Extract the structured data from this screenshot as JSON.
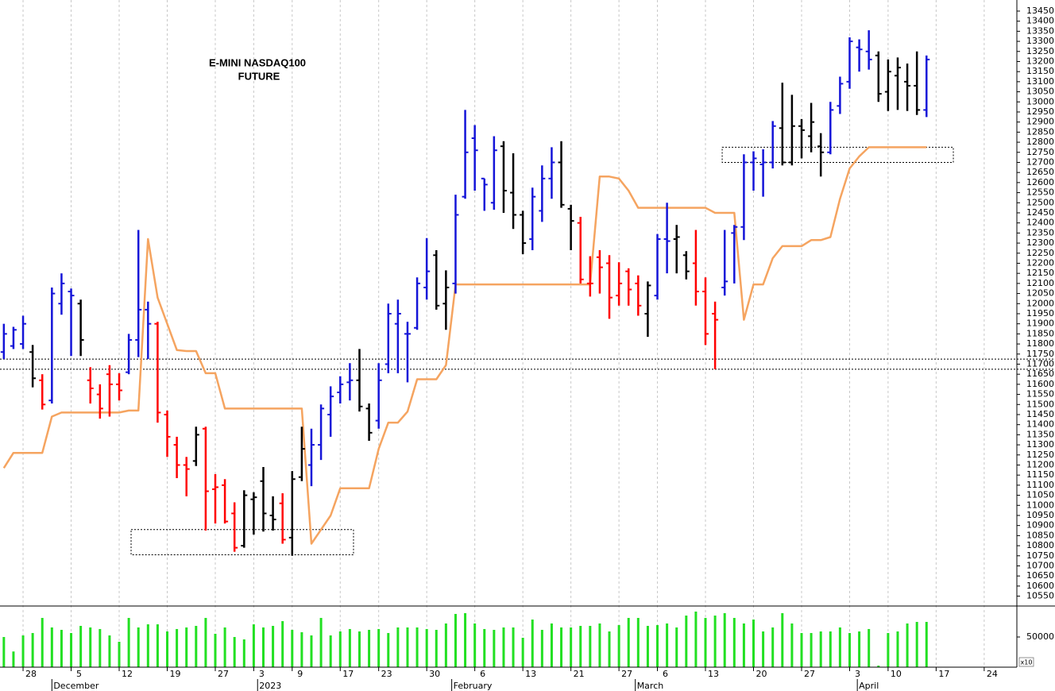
{
  "chart_data": [
    {
      "type": "ohlc",
      "title_lines": [
        "E-MINI NASDAQ100",
        "FUTURE"
      ],
      "xlim": [
        -0.4,
        105.4
      ],
      "ylim": [
        10505,
        13505
      ],
      "yticks": [
        10550,
        10600,
        10650,
        10700,
        10750,
        10800,
        10850,
        10900,
        10950,
        11000,
        11050,
        11100,
        11150,
        11200,
        11250,
        11300,
        11350,
        11400,
        11450,
        11500,
        11550,
        11600,
        11650,
        11700,
        11750,
        11800,
        11850,
        11900,
        11950,
        12000,
        12050,
        12100,
        12150,
        12200,
        12250,
        12300,
        12350,
        12400,
        12450,
        12500,
        12550,
        12600,
        12650,
        12700,
        12750,
        12800,
        12850,
        12900,
        12950,
        13000,
        13050,
        13100,
        13150,
        13200,
        13250,
        13300,
        13350,
        13400,
        13450
      ],
      "open": [
        11760,
        11790,
        11800,
        11760,
        11620,
        11520,
        12000,
        12060,
        12000,
        11620,
        11550,
        11650,
        11600,
        11660,
        11820,
        11970,
        11900,
        11450,
        11300,
        11200,
        11220,
        11380,
        11080,
        11100,
        10960,
        10800,
        11030,
        11120,
        10950,
        11010,
        10840,
        11140,
        11200,
        11300,
        11450,
        11560,
        11610,
        11620,
        11480,
        11420,
        11700,
        11900,
        11850,
        11880,
        12080,
        12240,
        12000,
        12100,
        12530,
        12820,
        12620,
        12500,
        12780,
        12550,
        12440,
        12320,
        12460,
        12620,
        12700,
        12470,
        12400,
        12100,
        12230,
        12200,
        12040,
        12160,
        12100,
        11950,
        12040,
        12320,
        12320,
        12240,
        12200,
        12060,
        11950,
        12080,
        12350,
        12380,
        12700,
        12690,
        12700,
        12870,
        12700,
        12880,
        12830,
        12780,
        12750,
        12980,
        13100,
        13270,
        13250,
        13230,
        13050,
        13130,
        13100,
        13080,
        12960
      ],
      "high": [
        11900,
        11885,
        11940,
        11795,
        11650,
        12080,
        12150,
        12075,
        12020,
        11685,
        11600,
        11695,
        11655,
        11850,
        12365,
        12010,
        11910,
        11470,
        11340,
        11240,
        11390,
        11390,
        11155,
        11130,
        11015,
        11075,
        11065,
        11190,
        11045,
        11060,
        11170,
        11390,
        11380,
        11500,
        11590,
        11640,
        11705,
        11775,
        11505,
        11705,
        12000,
        12020,
        11910,
        12130,
        12325,
        12265,
        12165,
        12540,
        12960,
        12885,
        12620,
        12830,
        12805,
        12745,
        12460,
        12575,
        12685,
        12775,
        12805,
        12490,
        12430,
        12235,
        12265,
        12240,
        12205,
        12175,
        12140,
        12110,
        12345,
        12500,
        12390,
        12260,
        12365,
        12130,
        12010,
        12365,
        12390,
        12740,
        12755,
        12765,
        12905,
        13095,
        13035,
        12915,
        12995,
        12845,
        13000,
        13125,
        13320,
        13310,
        13355,
        13250,
        13210,
        13220,
        13190,
        13250,
        13230
      ],
      "low": [
        11725,
        11775,
        11775,
        11585,
        11475,
        11505,
        11945,
        11740,
        11740,
        11505,
        11430,
        11440,
        11520,
        11650,
        11735,
        11725,
        11410,
        11240,
        11135,
        11045,
        11195,
        10875,
        10910,
        10910,
        10770,
        10790,
        10855,
        10870,
        10875,
        10810,
        10750,
        11120,
        11095,
        11225,
        11340,
        11505,
        11520,
        11465,
        11320,
        11380,
        11655,
        11655,
        11610,
        11870,
        12020,
        11970,
        11870,
        12050,
        12520,
        12560,
        12460,
        12465,
        12450,
        12370,
        12245,
        12265,
        12405,
        12520,
        12475,
        12265,
        12100,
        12035,
        12050,
        11925,
        11990,
        11990,
        11940,
        11835,
        12020,
        12150,
        12150,
        12120,
        11990,
        11795,
        11675,
        12040,
        12100,
        12315,
        12560,
        12530,
        12670,
        12685,
        12685,
        12720,
        12750,
        12630,
        12740,
        12940,
        13065,
        13150,
        13160,
        13000,
        12955,
        12960,
        12955,
        12935,
        12925
      ],
      "close": [
        11850,
        11870,
        11900,
        11630,
        11500,
        12050,
        12100,
        12040,
        11820,
        11580,
        11480,
        11600,
        11570,
        11820,
        11970,
        11900,
        11460,
        11340,
        11200,
        11180,
        11350,
        11070,
        11090,
        10920,
        10790,
        11050,
        11040,
        10960,
        10930,
        10830,
        11130,
        11280,
        11300,
        11480,
        11540,
        11600,
        11620,
        11490,
        11360,
        11620,
        11950,
        11950,
        11850,
        12100,
        12160,
        11990,
        12080,
        12440,
        12750,
        12760,
        12590,
        12760,
        12560,
        12440,
        12300,
        12530,
        12620,
        12700,
        12490,
        12410,
        12120,
        12100,
        12180,
        12030,
        12100,
        12070,
        11990,
        12090,
        12320,
        12310,
        12330,
        12160,
        12060,
        11850,
        11920,
        12110,
        12380,
        12700,
        12720,
        12700,
        12880,
        12700,
        12880,
        12860,
        12900,
        12750,
        12960,
        13090,
        13300,
        13260,
        13210,
        13040,
        13150,
        13170,
        13080,
        12960,
        13210
      ],
      "colors": [
        "#1414d8",
        "#1414d8",
        "#1414d8",
        "#000000",
        "#ff0000",
        "#1414d8",
        "#1414d8",
        "#1414d8",
        "#000000",
        "#ff0000",
        "#ff0000",
        "#ff0000",
        "#ff0000",
        "#1414d8",
        "#1414d8",
        "#1414d8",
        "#ff0000",
        "#ff0000",
        "#ff0000",
        "#ff0000",
        "#000000",
        "#ff0000",
        "#ff0000",
        "#ff0000",
        "#ff0000",
        "#000000",
        "#000000",
        "#000000",
        "#000000",
        "#ff0000",
        "#000000",
        "#000000",
        "#1414d8",
        "#1414d8",
        "#1414d8",
        "#1414d8",
        "#1414d8",
        "#000000",
        "#000000",
        "#1414d8",
        "#1414d8",
        "#1414d8",
        "#1414d8",
        "#1414d8",
        "#1414d8",
        "#000000",
        "#000000",
        "#1414d8",
        "#1414d8",
        "#1414d8",
        "#1414d8",
        "#1414d8",
        "#000000",
        "#000000",
        "#000000",
        "#1414d8",
        "#1414d8",
        "#1414d8",
        "#000000",
        "#000000",
        "#ff0000",
        "#ff0000",
        "#ff0000",
        "#ff0000",
        "#ff0000",
        "#ff0000",
        "#ff0000",
        "#000000",
        "#1414d8",
        "#1414d8",
        "#000000",
        "#000000",
        "#ff0000",
        "#ff0000",
        "#ff0000",
        "#1414d8",
        "#1414d8",
        "#1414d8",
        "#1414d8",
        "#1414d8",
        "#1414d8",
        "#000000",
        "#000000",
        "#000000",
        "#000000",
        "#000000",
        "#1414d8",
        "#1414d8",
        "#1414d8",
        "#1414d8",
        "#1414d8",
        "#000000",
        "#000000",
        "#000000",
        "#000000",
        "#000000",
        "#1414d8"
      ],
      "overlay": {
        "color": "#f5a460",
        "values": [
          11185,
          11260,
          11260,
          11260,
          11260,
          11440,
          11460,
          11460,
          11460,
          11460,
          11460,
          11460,
          11460,
          11470,
          11470,
          12320,
          12030,
          11900,
          11770,
          11765,
          11765,
          11655,
          11655,
          11480,
          11480,
          11480,
          11480,
          11480,
          11480,
          11480,
          11480,
          11480,
          10810,
          10880,
          10950,
          11085,
          11085,
          11085,
          11085,
          11280,
          11410,
          11410,
          11465,
          11625,
          11625,
          11625,
          11695,
          12095,
          12095,
          12095,
          12095,
          12095,
          12095,
          12095,
          12095,
          12095,
          12095,
          12095,
          12095,
          12095,
          12095,
          12095,
          12630,
          12630,
          12620,
          12560,
          12475,
          12475,
          12475,
          12475,
          12475,
          12475,
          12475,
          12475,
          12450,
          12450,
          12450,
          11920,
          12095,
          12095,
          12225,
          12285,
          12285,
          12285,
          12315,
          12315,
          12330,
          12520,
          12670,
          12730,
          12775,
          12775,
          12775,
          12775,
          12775,
          12775,
          12775
        ]
      },
      "levels": [
        11725,
        11675
      ],
      "boxes": [
        {
          "x": [
            13.24,
            36.38
          ],
          "y": [
            10755,
            10880
          ]
        },
        {
          "x": [
            74.74,
            98.79
          ],
          "y": [
            12700,
            12775
          ]
        }
      ]
    },
    {
      "type": "bar",
      "color": "#22e022",
      "xlim": [
        -0.4,
        105.4
      ],
      "ylim": [
        0,
        100000
      ],
      "yticks": [
        50000
      ],
      "unit_label": "x10",
      "values": [
        50000,
        26000,
        52600,
        56600,
        81600,
        65800,
        61800,
        56600,
        68400,
        65800,
        63200,
        52600,
        42100,
        81600,
        65800,
        71000,
        71000,
        59200,
        63200,
        65800,
        68400,
        81600,
        55300,
        65800,
        50000,
        46000,
        71000,
        65800,
        68400,
        76300,
        61800,
        57900,
        52600,
        81600,
        52600,
        59200,
        63200,
        59200,
        61800,
        63200,
        56600,
        65800,
        65800,
        65800,
        63200,
        61800,
        72400,
        88200,
        89500,
        72400,
        63200,
        61800,
        65800,
        65800,
        48700,
        78900,
        61800,
        72400,
        65800,
        65800,
        68400,
        68400,
        72400,
        59200,
        69700,
        81600,
        81600,
        68400,
        69700,
        72400,
        65800,
        85500,
        92100,
        81600,
        85500,
        89500,
        81600,
        72400,
        78900,
        59200,
        65800,
        89500,
        72400,
        56600,
        56600,
        59200,
        59200,
        65800,
        56600,
        59200,
        63200,
        2600,
        56600,
        59200,
        72400,
        75000,
        75000
      ],
      "xticks": [
        {
          "value": 2,
          "label": "28"
        },
        {
          "value": 7,
          "label": "5"
        },
        {
          "value": 12,
          "label": "12"
        },
        {
          "value": 17,
          "label": "19"
        },
        {
          "value": 22,
          "label": "27"
        },
        {
          "value": 26,
          "label": "3"
        },
        {
          "value": 30,
          "label": "9"
        },
        {
          "value": 35,
          "label": "17"
        },
        {
          "value": 39,
          "label": "23"
        },
        {
          "value": 44,
          "label": "30"
        },
        {
          "value": 49,
          "label": "6"
        },
        {
          "value": 54,
          "label": "13"
        },
        {
          "value": 59,
          "label": "21"
        },
        {
          "value": 64,
          "label": "27"
        },
        {
          "value": 68,
          "label": "6"
        },
        {
          "value": 73,
          "label": "13"
        },
        {
          "value": 78,
          "label": "20"
        },
        {
          "value": 83,
          "label": "27"
        },
        {
          "value": 88,
          "label": "3"
        },
        {
          "value": 92,
          "label": "10"
        },
        {
          "value": 97,
          "label": "17"
        },
        {
          "value": 102,
          "label": "24"
        }
      ],
      "month_labels": [
        {
          "value": 5,
          "label": "December"
        },
        {
          "value": 26.4,
          "label": "2023"
        },
        {
          "value": 46.6,
          "label": "February"
        },
        {
          "value": 65.7,
          "label": "March"
        },
        {
          "value": 88.8,
          "label": "April"
        }
      ]
    }
  ]
}
